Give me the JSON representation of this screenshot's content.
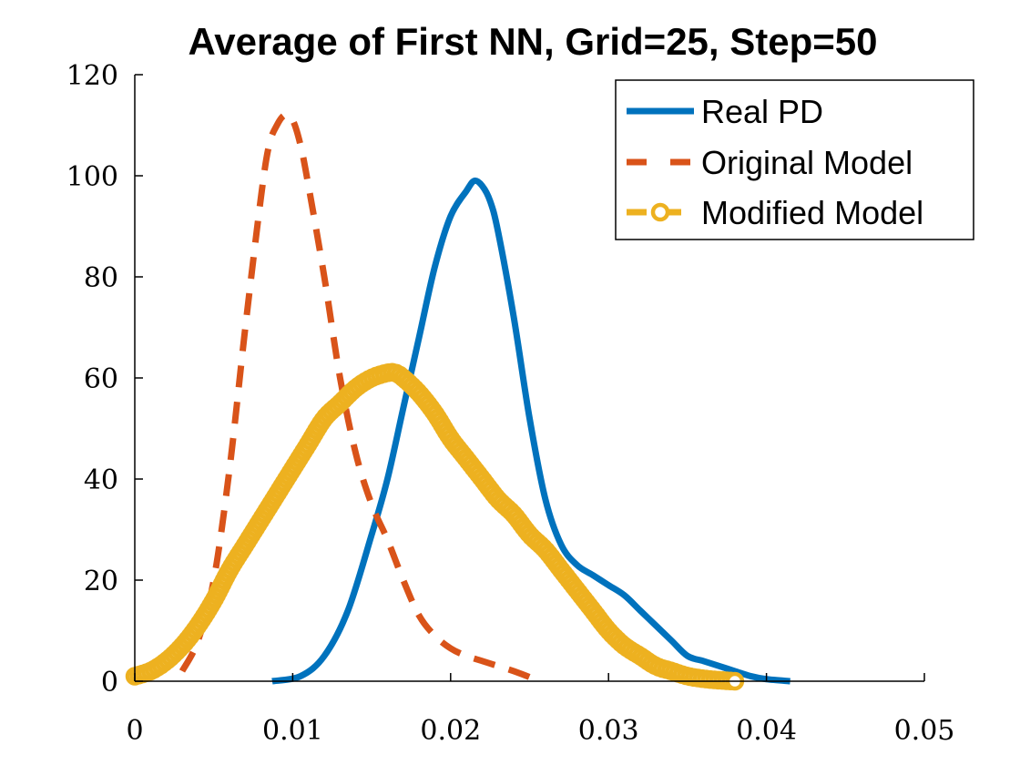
{
  "chart_data": {
    "type": "line",
    "title": "Average of First NN, Grid=25, Step=50",
    "xlabel": "",
    "ylabel": "",
    "xlim": [
      0,
      0.05
    ],
    "ylim": [
      0,
      120
    ],
    "xticks": [
      0,
      0.01,
      0.02,
      0.03,
      0.04,
      0.05
    ],
    "xtick_labels": [
      "0",
      "0.01",
      "0.02",
      "0.03",
      "0.04",
      "0.05"
    ],
    "yticks": [
      0,
      20,
      40,
      60,
      80,
      100,
      120
    ],
    "ytick_labels": [
      "0",
      "20",
      "40",
      "60",
      "80",
      "100",
      "120"
    ],
    "grid": false,
    "legend_position": "top-right",
    "series": [
      {
        "name": "Real PD",
        "color": "#0072BD",
        "style": "solid",
        "x": [
          0.0087,
          0.0105,
          0.012,
          0.0135,
          0.015,
          0.016,
          0.017,
          0.018,
          0.019,
          0.02,
          0.021,
          0.0215,
          0.022,
          0.0225,
          0.023,
          0.024,
          0.025,
          0.026,
          0.027,
          0.028,
          0.029,
          0.03,
          0.031,
          0.032,
          0.033,
          0.034,
          0.035,
          0.036,
          0.037,
          0.038,
          0.039,
          0.04,
          0.0415
        ],
        "values": [
          0,
          1,
          5,
          14,
          29,
          40,
          54,
          68,
          82,
          92,
          97,
          99,
          98,
          95,
          89,
          72,
          52,
          36,
          27,
          23,
          21,
          19,
          17,
          14,
          11,
          8,
          5,
          4,
          3,
          2,
          1,
          0.4,
          0
        ]
      },
      {
        "name": "Original Model",
        "color": "#D95319",
        "style": "dashed",
        "x": [
          0.003,
          0.004,
          0.005,
          0.006,
          0.007,
          0.008,
          0.0085,
          0.009,
          0.0095,
          0.01,
          0.0105,
          0.011,
          0.012,
          0.013,
          0.014,
          0.015,
          0.016,
          0.017,
          0.018,
          0.019,
          0.02,
          0.021,
          0.022,
          0.023,
          0.024,
          0.025,
          0.0255
        ],
        "values": [
          2,
          8,
          20,
          42,
          70,
          96,
          106,
          110,
          112,
          111,
          106,
          98,
          80,
          60,
          45,
          35,
          28,
          20,
          13,
          9,
          6.5,
          5,
          4,
          3,
          2,
          0.8,
          0
        ]
      },
      {
        "name": "Modified Model",
        "color": "#EDB120",
        "style": "dashed-circle",
        "x": [
          0.0,
          0.001,
          0.002,
          0.003,
          0.004,
          0.005,
          0.006,
          0.007,
          0.008,
          0.009,
          0.01,
          0.011,
          0.012,
          0.013,
          0.014,
          0.015,
          0.016,
          0.0165,
          0.017,
          0.018,
          0.019,
          0.02,
          0.021,
          0.022,
          0.023,
          0.024,
          0.025,
          0.026,
          0.027,
          0.028,
          0.029,
          0.03,
          0.031,
          0.032,
          0.033,
          0.034,
          0.035,
          0.036,
          0.037,
          0.038
        ],
        "values": [
          1,
          2,
          4,
          7,
          11,
          16,
          22,
          27,
          32,
          37,
          42,
          47,
          52,
          55,
          58,
          60,
          61,
          61,
          60,
          57,
          53,
          48,
          44,
          40,
          36,
          33,
          29,
          26,
          22,
          18,
          14,
          10,
          7,
          5,
          3,
          2,
          1,
          0.5,
          0.2,
          0
        ]
      }
    ]
  }
}
